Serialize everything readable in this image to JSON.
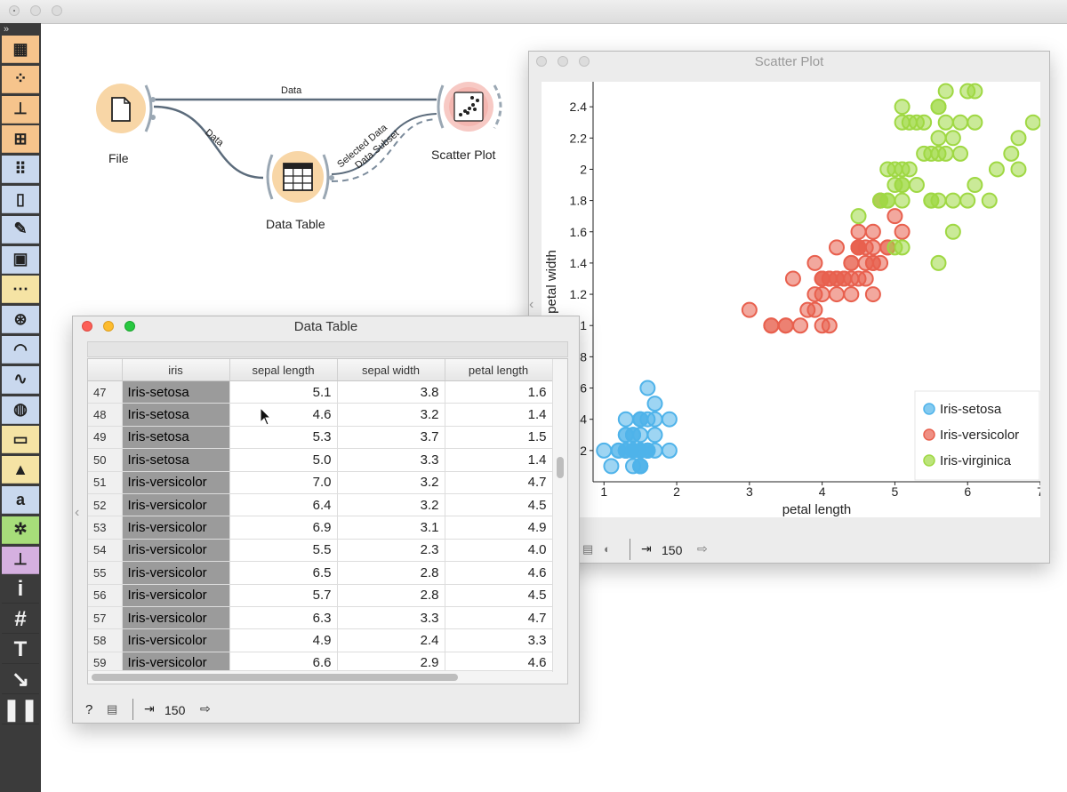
{
  "canvas": {
    "nodes": {
      "file": "File",
      "data_table": "Data Table",
      "scatter_plot": "Scatter Plot"
    },
    "links": {
      "file_to_scatter": "Data",
      "file_to_table": "Data",
      "selected_data": "Selected Data",
      "data_subset": "Data Subset"
    }
  },
  "toolbar": {
    "expand": "»",
    "icons": [
      "table-icon",
      "scatter-icon",
      "tree-icon",
      "matrix-icon",
      "dots-icon",
      "mouse-icon",
      "paint-icon",
      "image-icon",
      "linear-icon",
      "venn-icon",
      "arc-icon",
      "linechart-icon",
      "globe-icon",
      "boxes-icon",
      "graduation-icon",
      "text-a-icon",
      "network-icon",
      "stamp-icon",
      "info-icon",
      "hash-icon",
      "text-t-icon",
      "arrow-icon",
      "pause-icon"
    ]
  },
  "data_table_window": {
    "title": "Data Table",
    "columns": [
      "iris",
      "sepal length",
      "sepal width",
      "petal length"
    ],
    "rows": [
      {
        "n": "47",
        "iris": "Iris-setosa",
        "sl": "5.1",
        "sw": "3.8",
        "pl": "1.6"
      },
      {
        "n": "48",
        "iris": "Iris-setosa",
        "sl": "4.6",
        "sw": "3.2",
        "pl": "1.4"
      },
      {
        "n": "49",
        "iris": "Iris-setosa",
        "sl": "5.3",
        "sw": "3.7",
        "pl": "1.5"
      },
      {
        "n": "50",
        "iris": "Iris-setosa",
        "sl": "5.0",
        "sw": "3.3",
        "pl": "1.4"
      },
      {
        "n": "51",
        "iris": "Iris-versicolor",
        "sl": "7.0",
        "sw": "3.2",
        "pl": "4.7"
      },
      {
        "n": "52",
        "iris": "Iris-versicolor",
        "sl": "6.4",
        "sw": "3.2",
        "pl": "4.5"
      },
      {
        "n": "53",
        "iris": "Iris-versicolor",
        "sl": "6.9",
        "sw": "3.1",
        "pl": "4.9"
      },
      {
        "n": "54",
        "iris": "Iris-versicolor",
        "sl": "5.5",
        "sw": "2.3",
        "pl": "4.0"
      },
      {
        "n": "55",
        "iris": "Iris-versicolor",
        "sl": "6.5",
        "sw": "2.8",
        "pl": "4.6"
      },
      {
        "n": "56",
        "iris": "Iris-versicolor",
        "sl": "5.7",
        "sw": "2.8",
        "pl": "4.5"
      },
      {
        "n": "57",
        "iris": "Iris-versicolor",
        "sl": "6.3",
        "sw": "3.3",
        "pl": "4.7"
      },
      {
        "n": "58",
        "iris": "Iris-versicolor",
        "sl": "4.9",
        "sw": "2.4",
        "pl": "3.3"
      },
      {
        "n": "59",
        "iris": "Iris-versicolor",
        "sl": "6.6",
        "sw": "2.9",
        "pl": "4.6"
      }
    ],
    "status": {
      "count": "150"
    }
  },
  "scatter_window": {
    "title": "Scatter Plot",
    "status": {
      "count": "150"
    }
  },
  "chart_data": {
    "type": "scatter",
    "xlabel": "petal length",
    "ylabel": "petal width",
    "xlim": [
      0.85,
      7.0
    ],
    "ylim": [
      0.0,
      2.56
    ],
    "xticks": [
      "1",
      "2",
      "3",
      "4",
      "5",
      "6",
      "7"
    ],
    "yticks": [
      {
        "v": 0.2,
        "label": ".2"
      },
      {
        "v": 0.4,
        "label": ".4"
      },
      {
        "v": 0.6,
        "label": ".6"
      },
      {
        "v": 0.8,
        "label": ".8"
      },
      {
        "v": 1.0,
        "label": "1"
      },
      {
        "v": 1.2,
        "label": "1.2"
      },
      {
        "v": 1.4,
        "label": "1.4"
      },
      {
        "v": 1.6,
        "label": "1.6"
      },
      {
        "v": 1.8,
        "label": "1.8"
      },
      {
        "v": 2.0,
        "label": "2"
      },
      {
        "v": 2.2,
        "label": "2.2"
      },
      {
        "v": 2.4,
        "label": "2.4"
      }
    ],
    "legend_position": "bottom-right",
    "series": [
      {
        "name": "Iris-setosa",
        "color": "#4fb3ea",
        "points": [
          [
            1.4,
            0.2
          ],
          [
            1.4,
            0.2
          ],
          [
            1.3,
            0.2
          ],
          [
            1.5,
            0.2
          ],
          [
            1.4,
            0.2
          ],
          [
            1.7,
            0.4
          ],
          [
            1.4,
            0.3
          ],
          [
            1.5,
            0.2
          ],
          [
            1.4,
            0.2
          ],
          [
            1.5,
            0.1
          ],
          [
            1.5,
            0.2
          ],
          [
            1.6,
            0.2
          ],
          [
            1.4,
            0.1
          ],
          [
            1.1,
            0.1
          ],
          [
            1.2,
            0.2
          ],
          [
            1.5,
            0.4
          ],
          [
            1.3,
            0.4
          ],
          [
            1.4,
            0.3
          ],
          [
            1.7,
            0.3
          ],
          [
            1.5,
            0.3
          ],
          [
            1.7,
            0.2
          ],
          [
            1.5,
            0.4
          ],
          [
            1.0,
            0.2
          ],
          [
            1.7,
            0.5
          ],
          [
            1.9,
            0.2
          ],
          [
            1.6,
            0.2
          ],
          [
            1.6,
            0.4
          ],
          [
            1.5,
            0.2
          ],
          [
            1.4,
            0.2
          ],
          [
            1.6,
            0.2
          ],
          [
            1.6,
            0.2
          ],
          [
            1.5,
            0.4
          ],
          [
            1.5,
            0.1
          ],
          [
            1.4,
            0.2
          ],
          [
            1.5,
            0.1
          ],
          [
            1.2,
            0.2
          ],
          [
            1.3,
            0.2
          ],
          [
            1.5,
            0.1
          ],
          [
            1.3,
            0.2
          ],
          [
            1.5,
            0.2
          ],
          [
            1.3,
            0.3
          ],
          [
            1.3,
            0.3
          ],
          [
            1.3,
            0.2
          ],
          [
            1.6,
            0.6
          ],
          [
            1.9,
            0.4
          ],
          [
            1.4,
            0.3
          ],
          [
            1.6,
            0.2
          ],
          [
            1.4,
            0.2
          ],
          [
            1.5,
            0.2
          ],
          [
            1.4,
            0.2
          ]
        ]
      },
      {
        "name": "Iris-versicolor",
        "color": "#e8604e",
        "points": [
          [
            4.7,
            1.4
          ],
          [
            4.5,
            1.5
          ],
          [
            4.9,
            1.5
          ],
          [
            4.0,
            1.3
          ],
          [
            4.6,
            1.5
          ],
          [
            4.5,
            1.3
          ],
          [
            4.7,
            1.6
          ],
          [
            3.3,
            1.0
          ],
          [
            4.6,
            1.3
          ],
          [
            3.9,
            1.4
          ],
          [
            3.5,
            1.0
          ],
          [
            4.2,
            1.5
          ],
          [
            4.0,
            1.0
          ],
          [
            4.7,
            1.4
          ],
          [
            3.6,
            1.3
          ],
          [
            4.4,
            1.4
          ],
          [
            4.5,
            1.5
          ],
          [
            4.1,
            1.0
          ],
          [
            4.5,
            1.5
          ],
          [
            3.9,
            1.1
          ],
          [
            4.8,
            1.8
          ],
          [
            4.0,
            1.3
          ],
          [
            4.9,
            1.5
          ],
          [
            4.7,
            1.2
          ],
          [
            4.3,
            1.3
          ],
          [
            4.4,
            1.4
          ],
          [
            4.8,
            1.4
          ],
          [
            5.0,
            1.7
          ],
          [
            4.5,
            1.5
          ],
          [
            3.5,
            1.0
          ],
          [
            3.8,
            1.1
          ],
          [
            3.7,
            1.0
          ],
          [
            3.9,
            1.2
          ],
          [
            5.1,
            1.6
          ],
          [
            4.5,
            1.5
          ],
          [
            4.5,
            1.6
          ],
          [
            4.7,
            1.5
          ],
          [
            4.4,
            1.3
          ],
          [
            4.1,
            1.3
          ],
          [
            4.0,
            1.3
          ],
          [
            4.4,
            1.2
          ],
          [
            4.6,
            1.4
          ],
          [
            4.0,
            1.2
          ],
          [
            3.3,
            1.0
          ],
          [
            4.2,
            1.3
          ],
          [
            4.2,
            1.2
          ],
          [
            4.2,
            1.3
          ],
          [
            4.3,
            1.3
          ],
          [
            3.0,
            1.1
          ],
          [
            4.1,
            1.3
          ]
        ]
      },
      {
        "name": "Iris-virginica",
        "color": "#9fd843",
        "points": [
          [
            6.0,
            2.5
          ],
          [
            5.1,
            1.9
          ],
          [
            5.9,
            2.1
          ],
          [
            5.6,
            1.8
          ],
          [
            5.8,
            2.2
          ],
          [
            6.6,
            2.1
          ],
          [
            4.5,
            1.7
          ],
          [
            6.3,
            1.8
          ],
          [
            5.8,
            1.8
          ],
          [
            6.1,
            2.5
          ],
          [
            5.1,
            2.0
          ],
          [
            5.3,
            1.9
          ],
          [
            5.5,
            2.1
          ],
          [
            5.0,
            2.0
          ],
          [
            5.1,
            2.4
          ],
          [
            5.3,
            2.3
          ],
          [
            5.5,
            1.8
          ],
          [
            6.7,
            2.2
          ],
          [
            6.9,
            2.3
          ],
          [
            5.0,
            1.5
          ],
          [
            5.7,
            2.3
          ],
          [
            4.9,
            2.0
          ],
          [
            6.7,
            2.0
          ],
          [
            4.9,
            1.8
          ],
          [
            5.7,
            2.1
          ],
          [
            6.0,
            1.8
          ],
          [
            4.8,
            1.8
          ],
          [
            4.9,
            1.8
          ],
          [
            5.6,
            2.1
          ],
          [
            5.8,
            1.6
          ],
          [
            6.1,
            1.9
          ],
          [
            6.4,
            2.0
          ],
          [
            5.6,
            2.2
          ],
          [
            5.1,
            1.5
          ],
          [
            5.6,
            1.4
          ],
          [
            6.1,
            2.3
          ],
          [
            5.6,
            2.4
          ],
          [
            5.5,
            1.8
          ],
          [
            4.8,
            1.8
          ],
          [
            5.4,
            2.1
          ],
          [
            5.6,
            2.4
          ],
          [
            5.1,
            2.3
          ],
          [
            5.1,
            1.9
          ],
          [
            5.9,
            2.3
          ],
          [
            5.7,
            2.5
          ],
          [
            5.2,
            2.3
          ],
          [
            5.0,
            1.9
          ],
          [
            5.2,
            2.0
          ],
          [
            5.4,
            2.3
          ],
          [
            5.1,
            1.8
          ]
        ]
      }
    ]
  }
}
